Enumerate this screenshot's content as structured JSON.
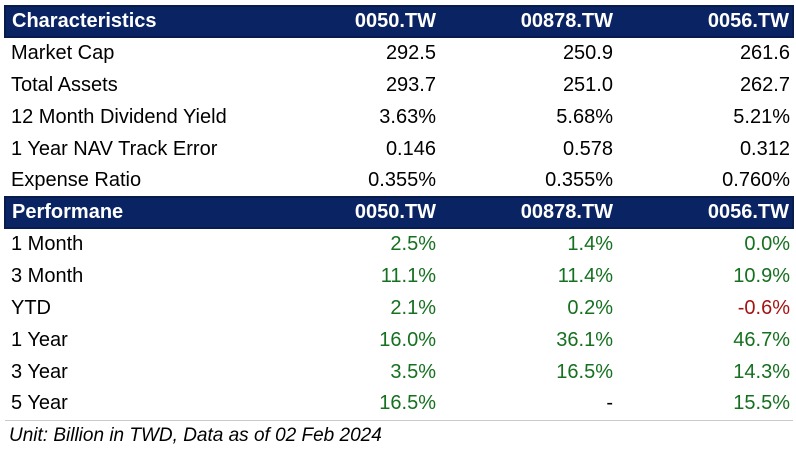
{
  "colors": {
    "navy": "#0A2362",
    "navy-border": "#071B4D",
    "green": "#15701F",
    "red": "#A31414",
    "ink": "#000000",
    "rule": "#c9c9c9",
    "header-text": "#ffffff"
  },
  "chart_data": {
    "type": "table",
    "column_headers": [
      "0050.TW",
      "00878.TW",
      "0056.TW"
    ],
    "sections": [
      {
        "title": "Characteristics",
        "rows": [
          {
            "label": "Market Cap",
            "values": [
              "292.5",
              "250.9",
              "261.6"
            ]
          },
          {
            "label": "Total Assets",
            "values": [
              "293.7",
              "251.0",
              "262.7"
            ]
          },
          {
            "label": "12 Month Dividend Yield",
            "values": [
              "3.63%",
              "5.68%",
              "5.21%"
            ]
          },
          {
            "label": "1 Year NAV Track Error",
            "values": [
              "0.146",
              "0.578",
              "0.312"
            ]
          },
          {
            "label": "Expense Ratio",
            "values": [
              "0.355%",
              "0.355%",
              "0.760%"
            ]
          }
        ]
      },
      {
        "title": "Performane",
        "rows": [
          {
            "label": "1 Month",
            "values": [
              {
                "text": "2.5%",
                "tone": "pos"
              },
              {
                "text": "1.4%",
                "tone": "pos"
              },
              {
                "text": "0.0%",
                "tone": "pos"
              }
            ]
          },
          {
            "label": "3 Month",
            "values": [
              {
                "text": "11.1%",
                "tone": "pos"
              },
              {
                "text": "11.4%",
                "tone": "pos"
              },
              {
                "text": "10.9%",
                "tone": "pos"
              }
            ]
          },
          {
            "label": "YTD",
            "values": [
              {
                "text": "2.1%",
                "tone": "pos"
              },
              {
                "text": "0.2%",
                "tone": "pos"
              },
              {
                "text": "-0.6%",
                "tone": "neg"
              }
            ]
          },
          {
            "label": "1 Year",
            "values": [
              {
                "text": "16.0%",
                "tone": "pos"
              },
              {
                "text": "36.1%",
                "tone": "pos"
              },
              {
                "text": "46.7%",
                "tone": "pos"
              }
            ]
          },
          {
            "label": "3 Year",
            "values": [
              {
                "text": "3.5%",
                "tone": "pos"
              },
              {
                "text": "16.5%",
                "tone": "pos"
              },
              {
                "text": "14.3%",
                "tone": "pos"
              }
            ]
          },
          {
            "label": "5 Year",
            "values": [
              {
                "text": "16.5%",
                "tone": "pos"
              },
              {
                "text": "-",
                "tone": "ink"
              },
              {
                "text": "15.5%",
                "tone": "pos"
              }
            ]
          }
        ]
      }
    ],
    "footnote": "Unit: Billion in TWD, Data as of 02 Feb 2024"
  }
}
